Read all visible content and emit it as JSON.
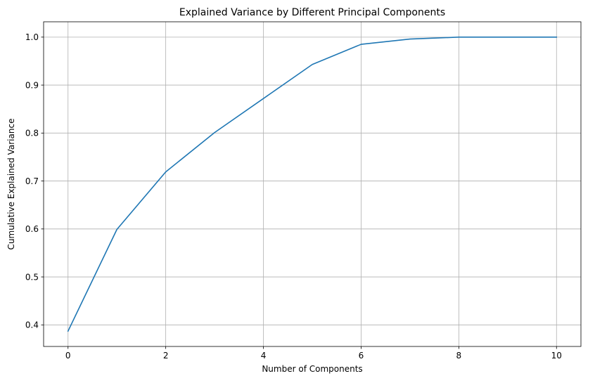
{
  "chart_data": {
    "type": "line",
    "title": "Explained Variance by Different Principal Components",
    "xlabel": "Number of Components",
    "ylabel": "Cumulative Explained Variance",
    "xlim": [
      -0.5,
      10.5
    ],
    "ylim": [
      0.355,
      1.032
    ],
    "xticks": [
      0,
      2,
      4,
      6,
      8,
      10
    ],
    "xtick_labels": [
      "0",
      "2",
      "4",
      "6",
      "8",
      "10"
    ],
    "yticks": [
      0.4,
      0.5,
      0.6,
      0.7,
      0.8,
      0.9,
      1.0
    ],
    "ytick_labels": [
      "0.4",
      "0.5",
      "0.6",
      "0.7",
      "0.8",
      "0.9",
      "1.0"
    ],
    "grid": true,
    "series": [
      {
        "color": "#1f77b4",
        "x": [
          0,
          1,
          2,
          3,
          4,
          5,
          6,
          7,
          8,
          9,
          10
        ],
        "y": [
          0.387,
          0.599,
          0.719,
          0.801,
          0.872,
          0.943,
          0.985,
          0.996,
          1.0,
          1.0,
          1.0
        ]
      }
    ]
  }
}
